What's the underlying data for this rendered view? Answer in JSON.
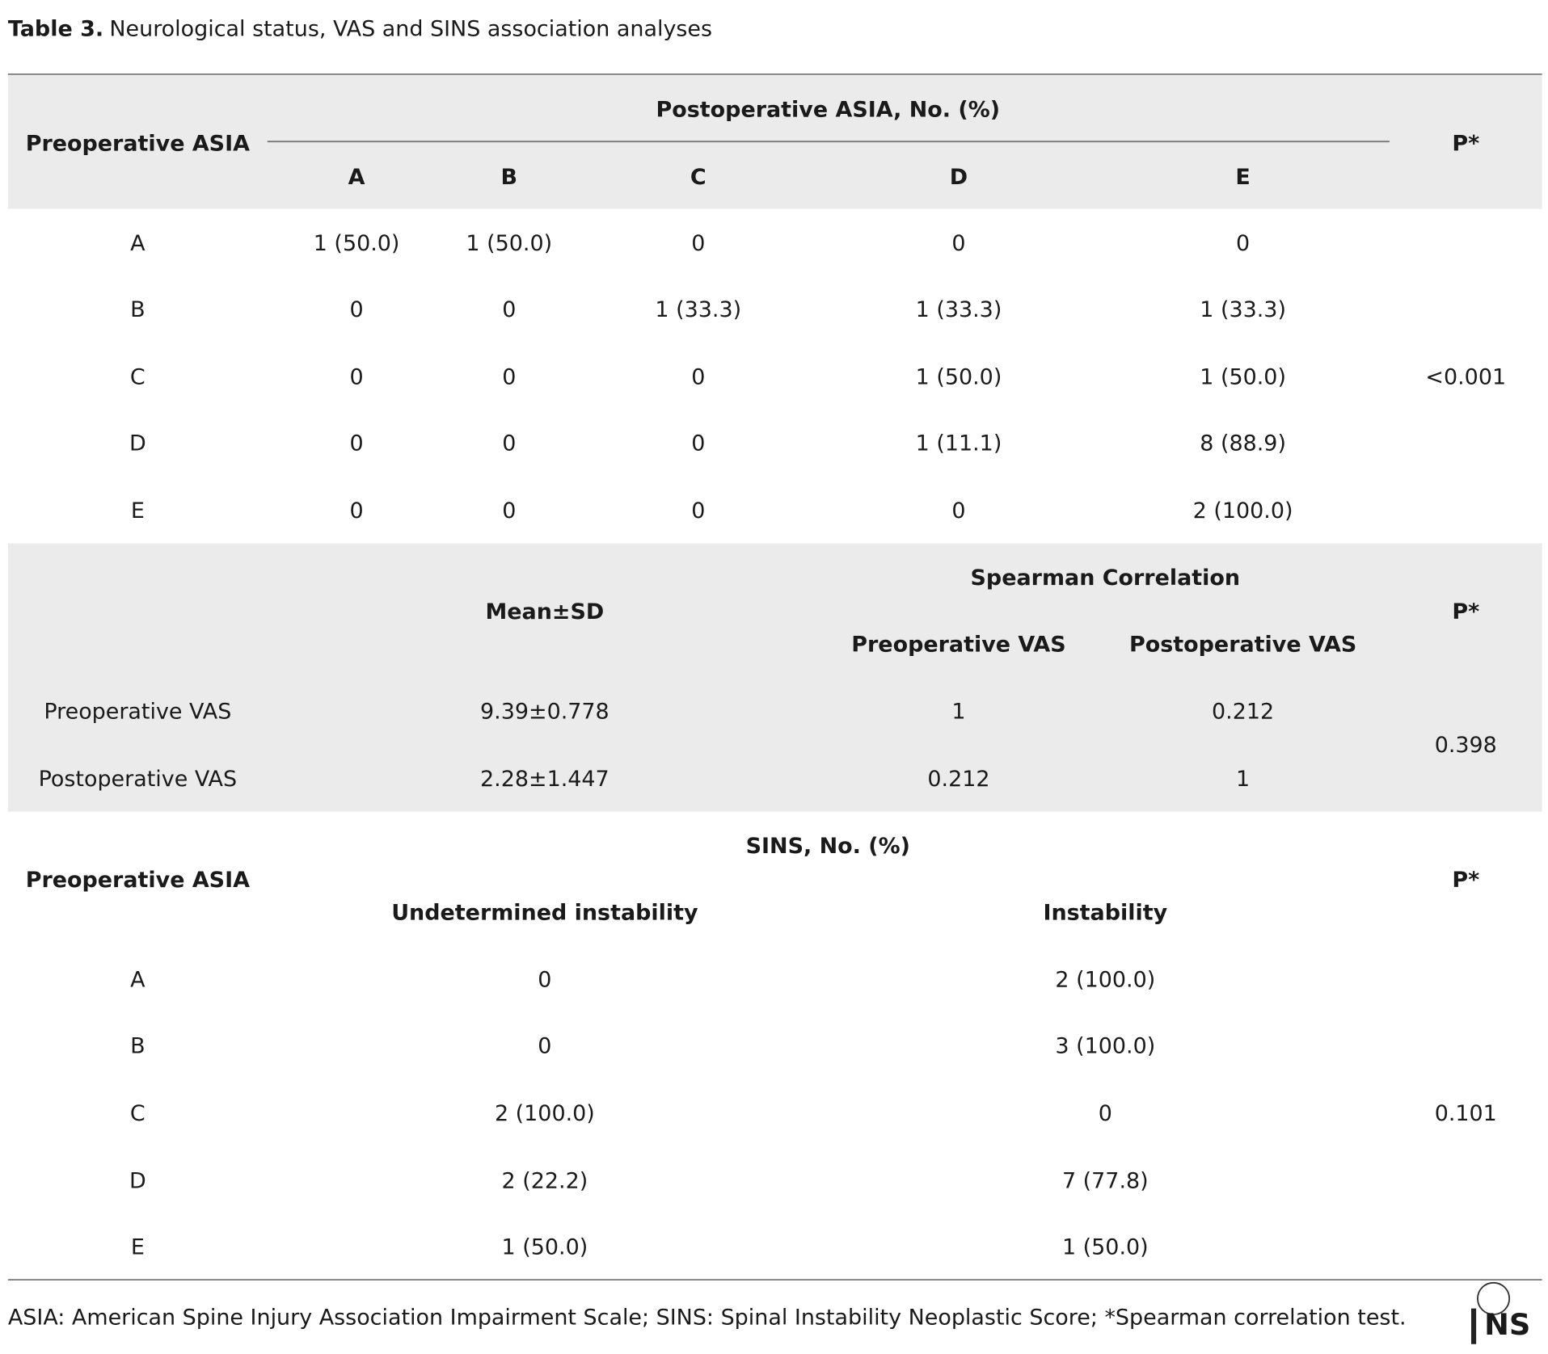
{
  "title": {
    "label": "Table 3.",
    "text": "Neurological status, VAS and SINS association analyses"
  },
  "section1": {
    "row_header": "Preoperative ASIA",
    "group_header": "Postoperative ASIA, No. (%)",
    "columns": [
      "A",
      "B",
      "C",
      "D",
      "E"
    ],
    "p_header": "P*",
    "rows": [
      {
        "label": "A",
        "cells": [
          "1 (50.0)",
          "1 (50.0)",
          "0",
          "0",
          "0"
        ]
      },
      {
        "label": "B",
        "cells": [
          "0",
          "0",
          "1 (33.3)",
          "1 (33.3)",
          "1 (33.3)"
        ]
      },
      {
        "label": "C",
        "cells": [
          "0",
          "0",
          "0",
          "1 (50.0)",
          "1 (50.0)"
        ]
      },
      {
        "label": "D",
        "cells": [
          "0",
          "0",
          "0",
          "1 (11.1)",
          "8 (88.9)"
        ]
      },
      {
        "label": "E",
        "cells": [
          "0",
          "0",
          "0",
          "0",
          "2 (100.0)"
        ]
      }
    ],
    "p_value": "<0.001"
  },
  "section2": {
    "mean_header": "Mean±SD",
    "group_header": "Spearman Correlation",
    "columns": [
      "Preoperative VAS",
      "Postoperative VAS"
    ],
    "p_header": "P*",
    "rows": [
      {
        "label": "Preoperative VAS",
        "mean": "9.39±0.778",
        "cells": [
          "1",
          "0.212"
        ]
      },
      {
        "label": "Postoperative VAS",
        "mean": "2.28±1.447",
        "cells": [
          "0.212",
          "1"
        ]
      }
    ],
    "p_value": "0.398"
  },
  "section3": {
    "row_header": "Preoperative ASIA",
    "group_header": "SINS, No. (%)",
    "columns": [
      "Undetermined instability",
      "Instability"
    ],
    "p_header": "P*",
    "rows": [
      {
        "label": "A",
        "cells": [
          "0",
          "2 (100.0)"
        ]
      },
      {
        "label": "B",
        "cells": [
          "0",
          "3 (100.0)"
        ]
      },
      {
        "label": "C",
        "cells": [
          "2 (100.0)",
          "0"
        ]
      },
      {
        "label": "D",
        "cells": [
          "2 (22.2)",
          "7 (77.8)"
        ]
      },
      {
        "label": "E",
        "cells": [
          "1 (50.0)",
          "1 (50.0)"
        ]
      }
    ],
    "p_value": "0.101"
  },
  "footnote": "ASIA: American Spine Injury Association Impairment Scale; SINS: Spinal Instability Neoplastic Score; *Spearman correlation test.",
  "logo": "NS"
}
